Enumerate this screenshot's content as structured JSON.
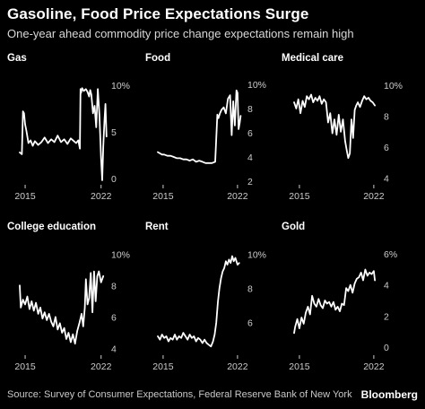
{
  "header": {
    "title": "Gasoline, Food Price Expectations Surge",
    "subtitle": "One-year ahead commodity price change expectations remain high"
  },
  "footer": {
    "source": "Source: Survey of Consumer Expectations, Federal Reserve Bank of New York",
    "brand": "Bloomberg"
  },
  "colors": {
    "background": "#000000",
    "line": "#ffffff",
    "text": "#ffffff",
    "tick": "#cccccc"
  },
  "chart_data": [
    {
      "type": "line",
      "title": "Gas",
      "x_ticks": [
        "2015",
        "2022"
      ],
      "y_ticks": [
        {
          "v": 0,
          "label": "0"
        },
        {
          "v": 5,
          "label": "5"
        },
        {
          "v": 10,
          "label": "10%"
        }
      ],
      "ylim": [
        -0.3,
        10.5
      ],
      "x": [
        2014.5,
        2014.7,
        2014.8,
        2014.9,
        2015.0,
        2015.1,
        2015.2,
        2015.3,
        2015.5,
        2015.7,
        2015.9,
        2016.2,
        2016.5,
        2016.8,
        2017.1,
        2017.4,
        2017.7,
        2018.0,
        2018.3,
        2018.6,
        2018.9,
        2019.2,
        2019.5,
        2019.7,
        2019.9,
        2020.05,
        2020.1,
        2020.15,
        2020.25,
        2020.4,
        2020.6,
        2020.75,
        2020.9,
        2021.0,
        2021.1,
        2021.25,
        2021.4,
        2021.55,
        2021.7,
        2021.85,
        2022.0,
        2022.1,
        2022.2,
        2022.3,
        2022.4,
        2022.5
      ],
      "y": [
        2.8,
        2.6,
        7.2,
        7.0,
        5.8,
        5.2,
        4.5,
        3.8,
        4.1,
        3.5,
        4.0,
        3.6,
        3.9,
        4.4,
        3.8,
        4.2,
        3.9,
        4.6,
        3.9,
        4.2,
        3.7,
        4.3,
        4.0,
        3.8,
        4.1,
        3.2,
        9.6,
        9.2,
        9.7,
        9.4,
        9.6,
        9.3,
        8.8,
        9.5,
        9.0,
        7.0,
        7.8,
        5.5,
        9.6,
        6.8,
        2.2,
        -0.2,
        3.5,
        6.0,
        8.0,
        4.5
      ]
    },
    {
      "type": "line",
      "title": "Food",
      "x_ticks": [
        "2015",
        "2022"
      ],
      "y_ticks": [
        {
          "v": 2,
          "label": "2"
        },
        {
          "v": 4,
          "label": "4"
        },
        {
          "v": 6,
          "label": "6"
        },
        {
          "v": 8,
          "label": "8"
        },
        {
          "v": 10,
          "label": "10%"
        }
      ],
      "ylim": [
        2,
        10.3
      ],
      "x": [
        2014.5,
        2014.7,
        2014.9,
        2015.1,
        2015.4,
        2015.7,
        2016.0,
        2016.3,
        2016.6,
        2016.9,
        2017.2,
        2017.5,
        2017.8,
        2018.1,
        2018.4,
        2018.7,
        2019.0,
        2019.3,
        2019.6,
        2019.9,
        2020.1,
        2020.2,
        2020.35,
        2020.5,
        2020.7,
        2020.9,
        2021.1,
        2021.3,
        2021.45,
        2021.6,
        2021.75,
        2021.9,
        2022.0,
        2022.1,
        2022.2,
        2022.3
      ],
      "y": [
        4.4,
        4.3,
        4.2,
        4.2,
        4.1,
        4.1,
        4.0,
        3.9,
        3.9,
        3.8,
        3.8,
        3.7,
        3.8,
        3.6,
        3.7,
        3.6,
        3.5,
        3.5,
        3.5,
        3.6,
        7.5,
        7.2,
        7.6,
        7.9,
        8.1,
        7.6,
        8.8,
        9.1,
        5.8,
        8.6,
        6.6,
        9.5,
        9.3,
        6.3,
        6.8,
        7.4
      ]
    },
    {
      "type": "line",
      "title": "Medical care",
      "x_ticks": [
        "2015",
        "2022"
      ],
      "y_ticks": [
        {
          "v": 4,
          "label": "4"
        },
        {
          "v": 6,
          "label": "6"
        },
        {
          "v": 8,
          "label": "8"
        },
        {
          "v": 10,
          "label": "10%"
        }
      ],
      "ylim": [
        3.8,
        10.3
      ],
      "x": [
        2014.5,
        2014.7,
        2014.9,
        2015.1,
        2015.3,
        2015.5,
        2015.7,
        2015.9,
        2016.1,
        2016.3,
        2016.5,
        2016.7,
        2016.9,
        2017.1,
        2017.3,
        2017.5,
        2017.7,
        2017.9,
        2018.1,
        2018.3,
        2018.5,
        2018.7,
        2018.9,
        2019.1,
        2019.3,
        2019.45,
        2019.6,
        2019.75,
        2019.9,
        2020.05,
        2020.2,
        2020.35,
        2020.5,
        2020.7,
        2020.9,
        2021.1,
        2021.3,
        2021.5,
        2021.7,
        2021.9,
        2022.1
      ],
      "y": [
        8.9,
        8.5,
        9.1,
        8.2,
        9.0,
        8.6,
        9.3,
        9.1,
        9.4,
        8.9,
        9.2,
        9.0,
        9.3,
        8.8,
        9.1,
        8.9,
        7.6,
        8.2,
        6.9,
        7.8,
        6.8,
        8.1,
        7.0,
        7.8,
        6.4,
        5.8,
        5.3,
        5.6,
        7.8,
        6.6,
        8.4,
        8.7,
        8.9,
        8.6,
        9.0,
        9.3,
        9.1,
        9.2,
        9.0,
        8.9,
        8.7
      ]
    },
    {
      "type": "line",
      "title": "College education",
      "x_ticks": [
        "2015",
        "2022"
      ],
      "y_ticks": [
        {
          "v": 4,
          "label": "4"
        },
        {
          "v": 6,
          "label": "6"
        },
        {
          "v": 8,
          "label": "8"
        },
        {
          "v": 10,
          "label": "10%"
        }
      ],
      "ylim": [
        3.8,
        10.3
      ],
      "x": [
        2014.5,
        2014.6,
        2014.8,
        2015.0,
        2015.2,
        2015.4,
        2015.6,
        2015.8,
        2016.0,
        2016.2,
        2016.4,
        2016.6,
        2016.8,
        2017.0,
        2017.2,
        2017.4,
        2017.6,
        2017.8,
        2018.0,
        2018.2,
        2018.4,
        2018.6,
        2018.8,
        2019.0,
        2019.2,
        2019.4,
        2019.6,
        2019.8,
        2020.0,
        2020.2,
        2020.35,
        2020.5,
        2020.6,
        2020.75,
        2020.9,
        2021.05,
        2021.2,
        2021.35,
        2021.5,
        2021.65,
        2021.8,
        2022.0,
        2022.2
      ],
      "y": [
        8.0,
        6.6,
        7.1,
        6.8,
        7.3,
        6.5,
        7.0,
        6.4,
        6.9,
        6.2,
        6.6,
        5.9,
        6.3,
        5.8,
        6.2,
        5.7,
        5.4,
        6.0,
        5.2,
        5.6,
        5.0,
        5.3,
        4.6,
        5.0,
        4.4,
        4.9,
        4.3,
        5.1,
        5.6,
        6.2,
        5.4,
        6.6,
        8.4,
        6.8,
        7.2,
        8.8,
        6.3,
        8.9,
        7.0,
        8.6,
        8.9,
        8.2,
        8.6
      ]
    },
    {
      "type": "line",
      "title": "Rent",
      "x_ticks": [
        "2015",
        "2022"
      ],
      "y_ticks": [
        {
          "v": 6,
          "label": "6"
        },
        {
          "v": 8,
          "label": "8"
        },
        {
          "v": 10,
          "label": "10%"
        }
      ],
      "ylim": [
        4.3,
        10.3
      ],
      "x": [
        2014.5,
        2014.7,
        2014.9,
        2015.1,
        2015.3,
        2015.5,
        2015.7,
        2015.9,
        2016.1,
        2016.3,
        2016.5,
        2016.7,
        2016.9,
        2017.1,
        2017.3,
        2017.5,
        2017.7,
        2017.9,
        2018.1,
        2018.3,
        2018.5,
        2018.7,
        2018.9,
        2019.1,
        2019.3,
        2019.5,
        2019.7,
        2019.85,
        2020.0,
        2020.15,
        2020.3,
        2020.45,
        2020.6,
        2020.75,
        2020.9,
        2021.05,
        2021.2,
        2021.35,
        2021.5,
        2021.65,
        2021.8,
        2022.0,
        2022.15
      ],
      "y": [
        5.2,
        5.0,
        5.3,
        5.1,
        5.2,
        4.9,
        5.1,
        5.0,
        5.3,
        5.0,
        5.2,
        5.1,
        5.4,
        5.2,
        5.0,
        5.3,
        5.1,
        5.2,
        4.9,
        5.1,
        5.0,
        4.8,
        5.0,
        4.8,
        4.7,
        4.6,
        4.9,
        5.3,
        6.0,
        7.2,
        8.0,
        8.6,
        9.0,
        9.2,
        9.6,
        9.4,
        9.7,
        9.5,
        9.9,
        9.6,
        9.8,
        9.4,
        9.5
      ]
    },
    {
      "type": "line",
      "title": "Gold",
      "x_ticks": [
        "2015",
        "2022"
      ],
      "y_ticks": [
        {
          "v": 0,
          "label": "0"
        },
        {
          "v": 2,
          "label": "2"
        },
        {
          "v": 4,
          "label": "4"
        },
        {
          "v": 6,
          "label": "6%"
        }
      ],
      "ylim": [
        -0.3,
        6.3
      ],
      "x": [
        2014.5,
        2014.6,
        2014.8,
        2015.0,
        2015.2,
        2015.4,
        2015.6,
        2015.8,
        2016.0,
        2016.2,
        2016.4,
        2016.6,
        2016.8,
        2017.0,
        2017.2,
        2017.4,
        2017.6,
        2017.8,
        2018.0,
        2018.2,
        2018.4,
        2018.6,
        2018.8,
        2019.0,
        2019.2,
        2019.4,
        2019.6,
        2019.8,
        2020.0,
        2020.2,
        2020.4,
        2020.6,
        2020.8,
        2021.0,
        2021.2,
        2021.4,
        2021.6,
        2021.8,
        2022.0,
        2022.1
      ],
      "y": [
        0.9,
        1.3,
        1.8,
        1.2,
        1.9,
        1.5,
        2.2,
        2.6,
        2.1,
        3.3,
        2.8,
        2.6,
        3.1,
        2.7,
        2.5,
        3.0,
        2.8,
        2.9,
        2.6,
        2.9,
        2.4,
        2.6,
        2.3,
        2.8,
        2.7,
        3.8,
        3.6,
        4.0,
        3.5,
        4.1,
        4.4,
        4.5,
        4.8,
        4.3,
        5.0,
        4.6,
        4.8,
        4.7,
        4.9,
        4.3
      ]
    }
  ]
}
